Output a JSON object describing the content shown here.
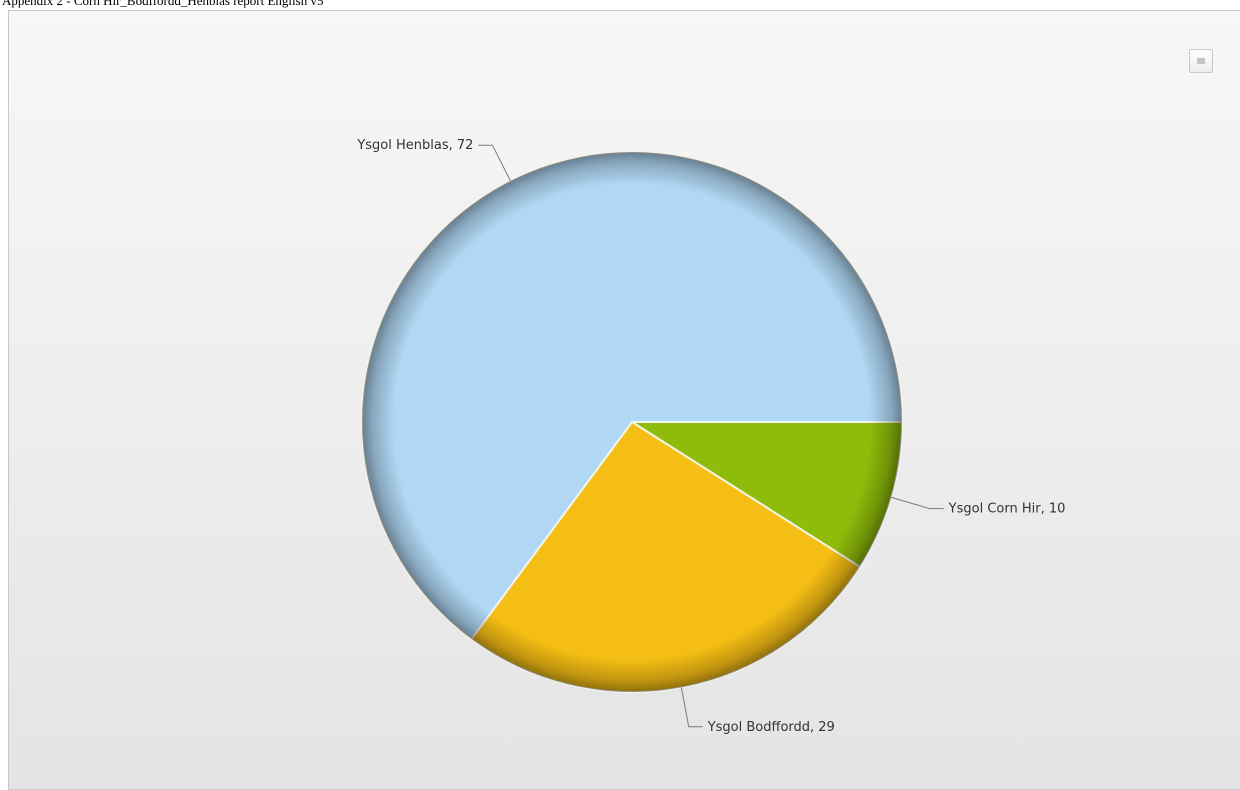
{
  "document": {
    "title": "Appendix 2 - Corn Hir_Bodffordd_Henblas report English v5"
  },
  "toolbar": {
    "menu_icon": "menu-icon"
  },
  "chart_data": {
    "type": "pie",
    "title": "",
    "slices": [
      {
        "name": "Ysgol Corn Hir",
        "value": 10,
        "label": "Ysgol Corn Hir, 10",
        "color": "#8fbc0a"
      },
      {
        "name": "Ysgol Bodffordd",
        "value": 29,
        "label": "Ysgol Bodffordd, 29",
        "color": "#f5be14"
      },
      {
        "name": "Ysgol Henblas",
        "value": 72,
        "label": "Ysgol Henblas, 72",
        "color": "#b0d8f5"
      }
    ],
    "legend": "none"
  }
}
